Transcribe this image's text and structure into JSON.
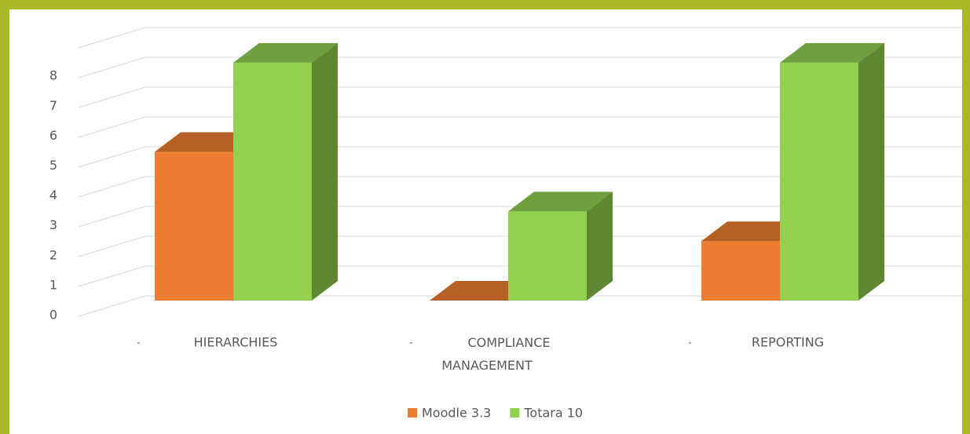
{
  "chart_data": {
    "type": "bar3d",
    "categories": [
      "HIERARCHIES",
      "COMPLIANCE MANAGEMENT",
      "REPORTING"
    ],
    "series": [
      {
        "name": "Moodle 3.3",
        "color": "#ed7d31",
        "values": [
          5,
          0,
          2
        ]
      },
      {
        "name": "Totara 10",
        "color": "#92d050",
        "values": [
          8,
          3,
          8
        ]
      }
    ],
    "ylim": [
      0,
      9
    ],
    "yticks": [
      0,
      1,
      2,
      3,
      4,
      5,
      6,
      7,
      8
    ],
    "grid": true,
    "legend": "bottom"
  }
}
